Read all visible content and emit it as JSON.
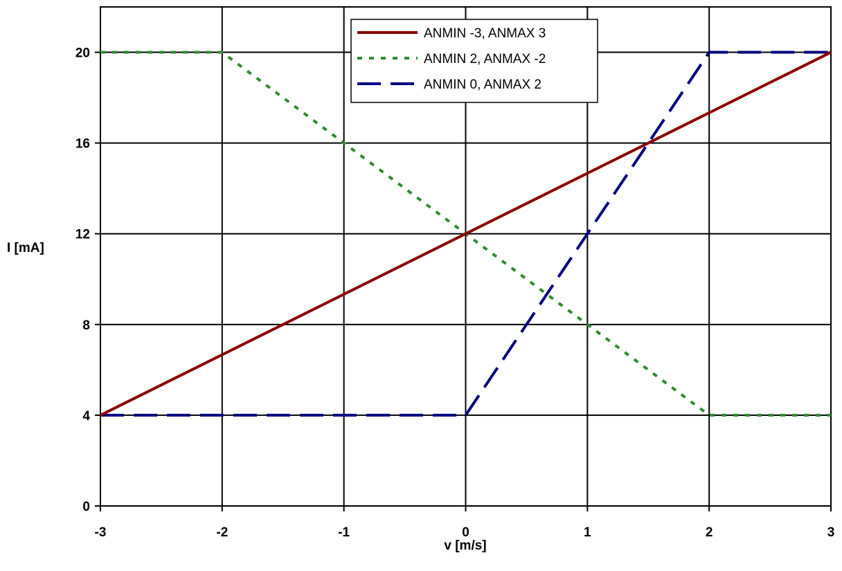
{
  "chart_data": {
    "type": "line",
    "xlabel": "v [m/s]",
    "ylabel": "I [mA]",
    "xlim": [
      -3,
      3
    ],
    "ylim": [
      0,
      22
    ],
    "xticks": [
      -3,
      -2,
      -1,
      0,
      1,
      2,
      3
    ],
    "yticks": [
      0,
      4,
      8,
      12,
      16,
      20
    ],
    "grid": true,
    "legend_position": "top-center",
    "series": [
      {
        "name": "ANMIN -3, ANMAX 3",
        "color": "#8b0000",
        "style": "solid",
        "x": [
          -3,
          3
        ],
        "y": [
          4,
          20
        ]
      },
      {
        "name": "ANMIN 2, ANMAX -2",
        "color": "#2e8b2e",
        "style": "dotted",
        "x": [
          -3,
          -2,
          -1,
          0,
          1,
          2,
          3
        ],
        "y": [
          20,
          20,
          16,
          12,
          8,
          4,
          4
        ]
      },
      {
        "name": "ANMIN 0, ANMAX 2",
        "color": "#000080",
        "style": "dashed",
        "x": [
          -3,
          0,
          1,
          2,
          3
        ],
        "y": [
          4,
          4,
          12,
          20,
          20
        ]
      }
    ]
  }
}
